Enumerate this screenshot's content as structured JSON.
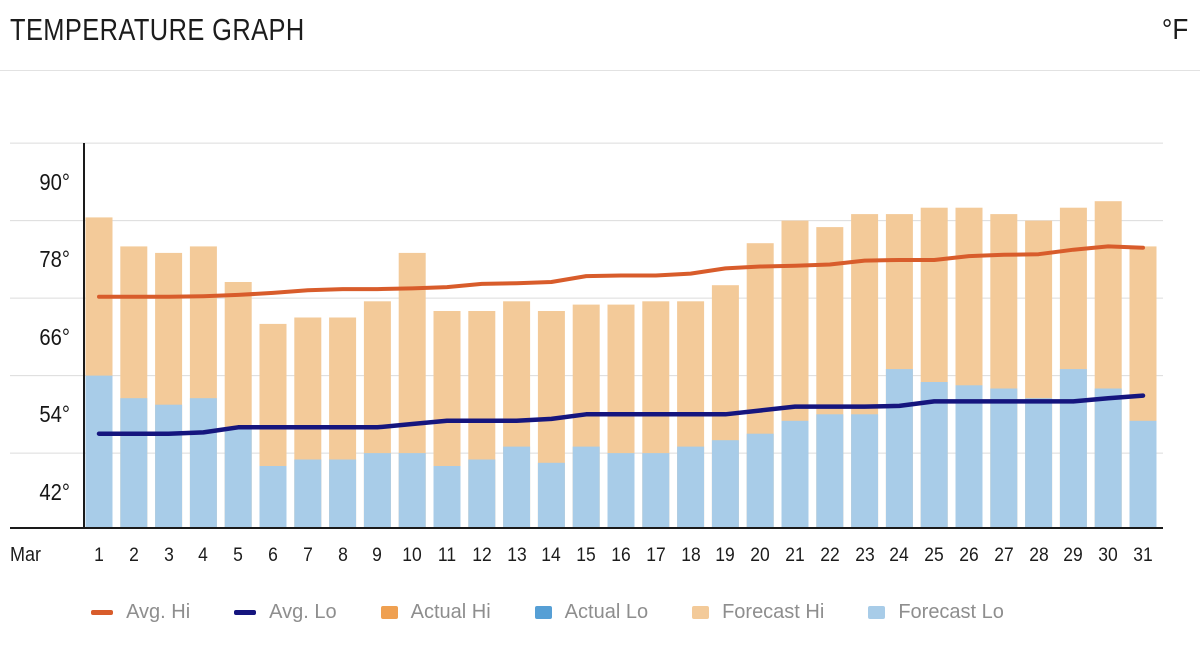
{
  "header": {
    "title": "TEMPERATURE GRAPH",
    "unit_label": "°F"
  },
  "chart_data": {
    "type": "bar",
    "title": "TEMPERATURE GRAPH",
    "unit": "°F",
    "month_label": "Mar",
    "x": [
      1,
      2,
      3,
      4,
      5,
      6,
      7,
      8,
      9,
      10,
      11,
      12,
      13,
      14,
      15,
      16,
      17,
      18,
      19,
      20,
      21,
      22,
      23,
      24,
      25,
      26,
      27,
      28,
      29,
      30,
      31
    ],
    "y_axis": {
      "tick_labels": [
        "90°",
        "78°",
        "66°",
        "54°",
        "42°"
      ],
      "tick_values": [
        90,
        78,
        66,
        54,
        42
      ],
      "gridline_values": [
        96,
        84,
        72,
        60,
        48
      ],
      "ymin": 36.4,
      "ymax": 96,
      "grid": true
    },
    "legend_position": "bottom",
    "series": [
      {
        "key": "avg_hi",
        "name": "Avg. Hi",
        "kind": "line",
        "color": "#d85c2b",
        "values": [
          72.2,
          72.2,
          72.2,
          72.3,
          72.5,
          72.8,
          73.2,
          73.4,
          73.4,
          73.5,
          73.7,
          74.2,
          74.3,
          74.5,
          75.4,
          75.5,
          75.5,
          75.8,
          76.6,
          76.9,
          77.0,
          77.2,
          77.8,
          77.9,
          77.9,
          78.5,
          78.7,
          78.8,
          79.5,
          80.0,
          79.8
        ]
      },
      {
        "key": "avg_lo",
        "name": "Avg. Lo",
        "kind": "line",
        "color": "#15157e",
        "values": [
          51,
          51,
          51,
          51.2,
          52,
          52,
          52,
          52,
          52,
          52.5,
          53,
          53,
          53,
          53.3,
          54,
          54,
          54,
          54,
          54,
          54.6,
          55.2,
          55.2,
          55.2,
          55.3,
          56,
          56,
          56,
          56,
          56,
          56.5,
          56.9
        ]
      },
      {
        "key": "forecast_hi",
        "name": "Forecast Hi",
        "kind": "bar",
        "color": "#f3ca99",
        "values": [
          84.5,
          80,
          79,
          80,
          74.5,
          68,
          69,
          69,
          71.5,
          79,
          70,
          70,
          71.5,
          70,
          71,
          71,
          71.5,
          71.5,
          74,
          80.5,
          84,
          83,
          85,
          85,
          86,
          86,
          85,
          84,
          86,
          87,
          80
        ]
      },
      {
        "key": "forecast_lo",
        "name": "Forecast Lo",
        "kind": "bar",
        "color": "#a8cce8",
        "values": [
          60,
          56.5,
          55.5,
          56.5,
          52,
          46,
          47,
          47,
          48,
          48,
          46,
          47,
          49,
          46.5,
          49,
          48,
          48,
          49,
          50,
          51,
          53,
          54,
          54,
          61,
          59,
          58.5,
          58,
          56.5,
          61,
          58,
          53
        ]
      }
    ],
    "legend": [
      {
        "label": "Avg. Hi",
        "swatch": "dash",
        "color": "#d85c2b"
      },
      {
        "label": "Avg. Lo",
        "swatch": "dash",
        "color": "#15157e"
      },
      {
        "label": "Actual Hi",
        "swatch": "square",
        "color": "#efa051"
      },
      {
        "label": "Actual Lo",
        "swatch": "square",
        "color": "#569fd5"
      },
      {
        "label": "Forecast Hi",
        "swatch": "square",
        "color": "#f3ca99"
      },
      {
        "label": "Forecast Lo",
        "swatch": "square",
        "color": "#a8cce8"
      }
    ],
    "colors": {
      "background": "#ffffff",
      "gridline": "#dcdcdc",
      "axis": "#1a1a1a",
      "axis_text": "#1c1c1c",
      "legend_text": "#8e8e8e",
      "header_divider": "#e2e2e2"
    }
  }
}
